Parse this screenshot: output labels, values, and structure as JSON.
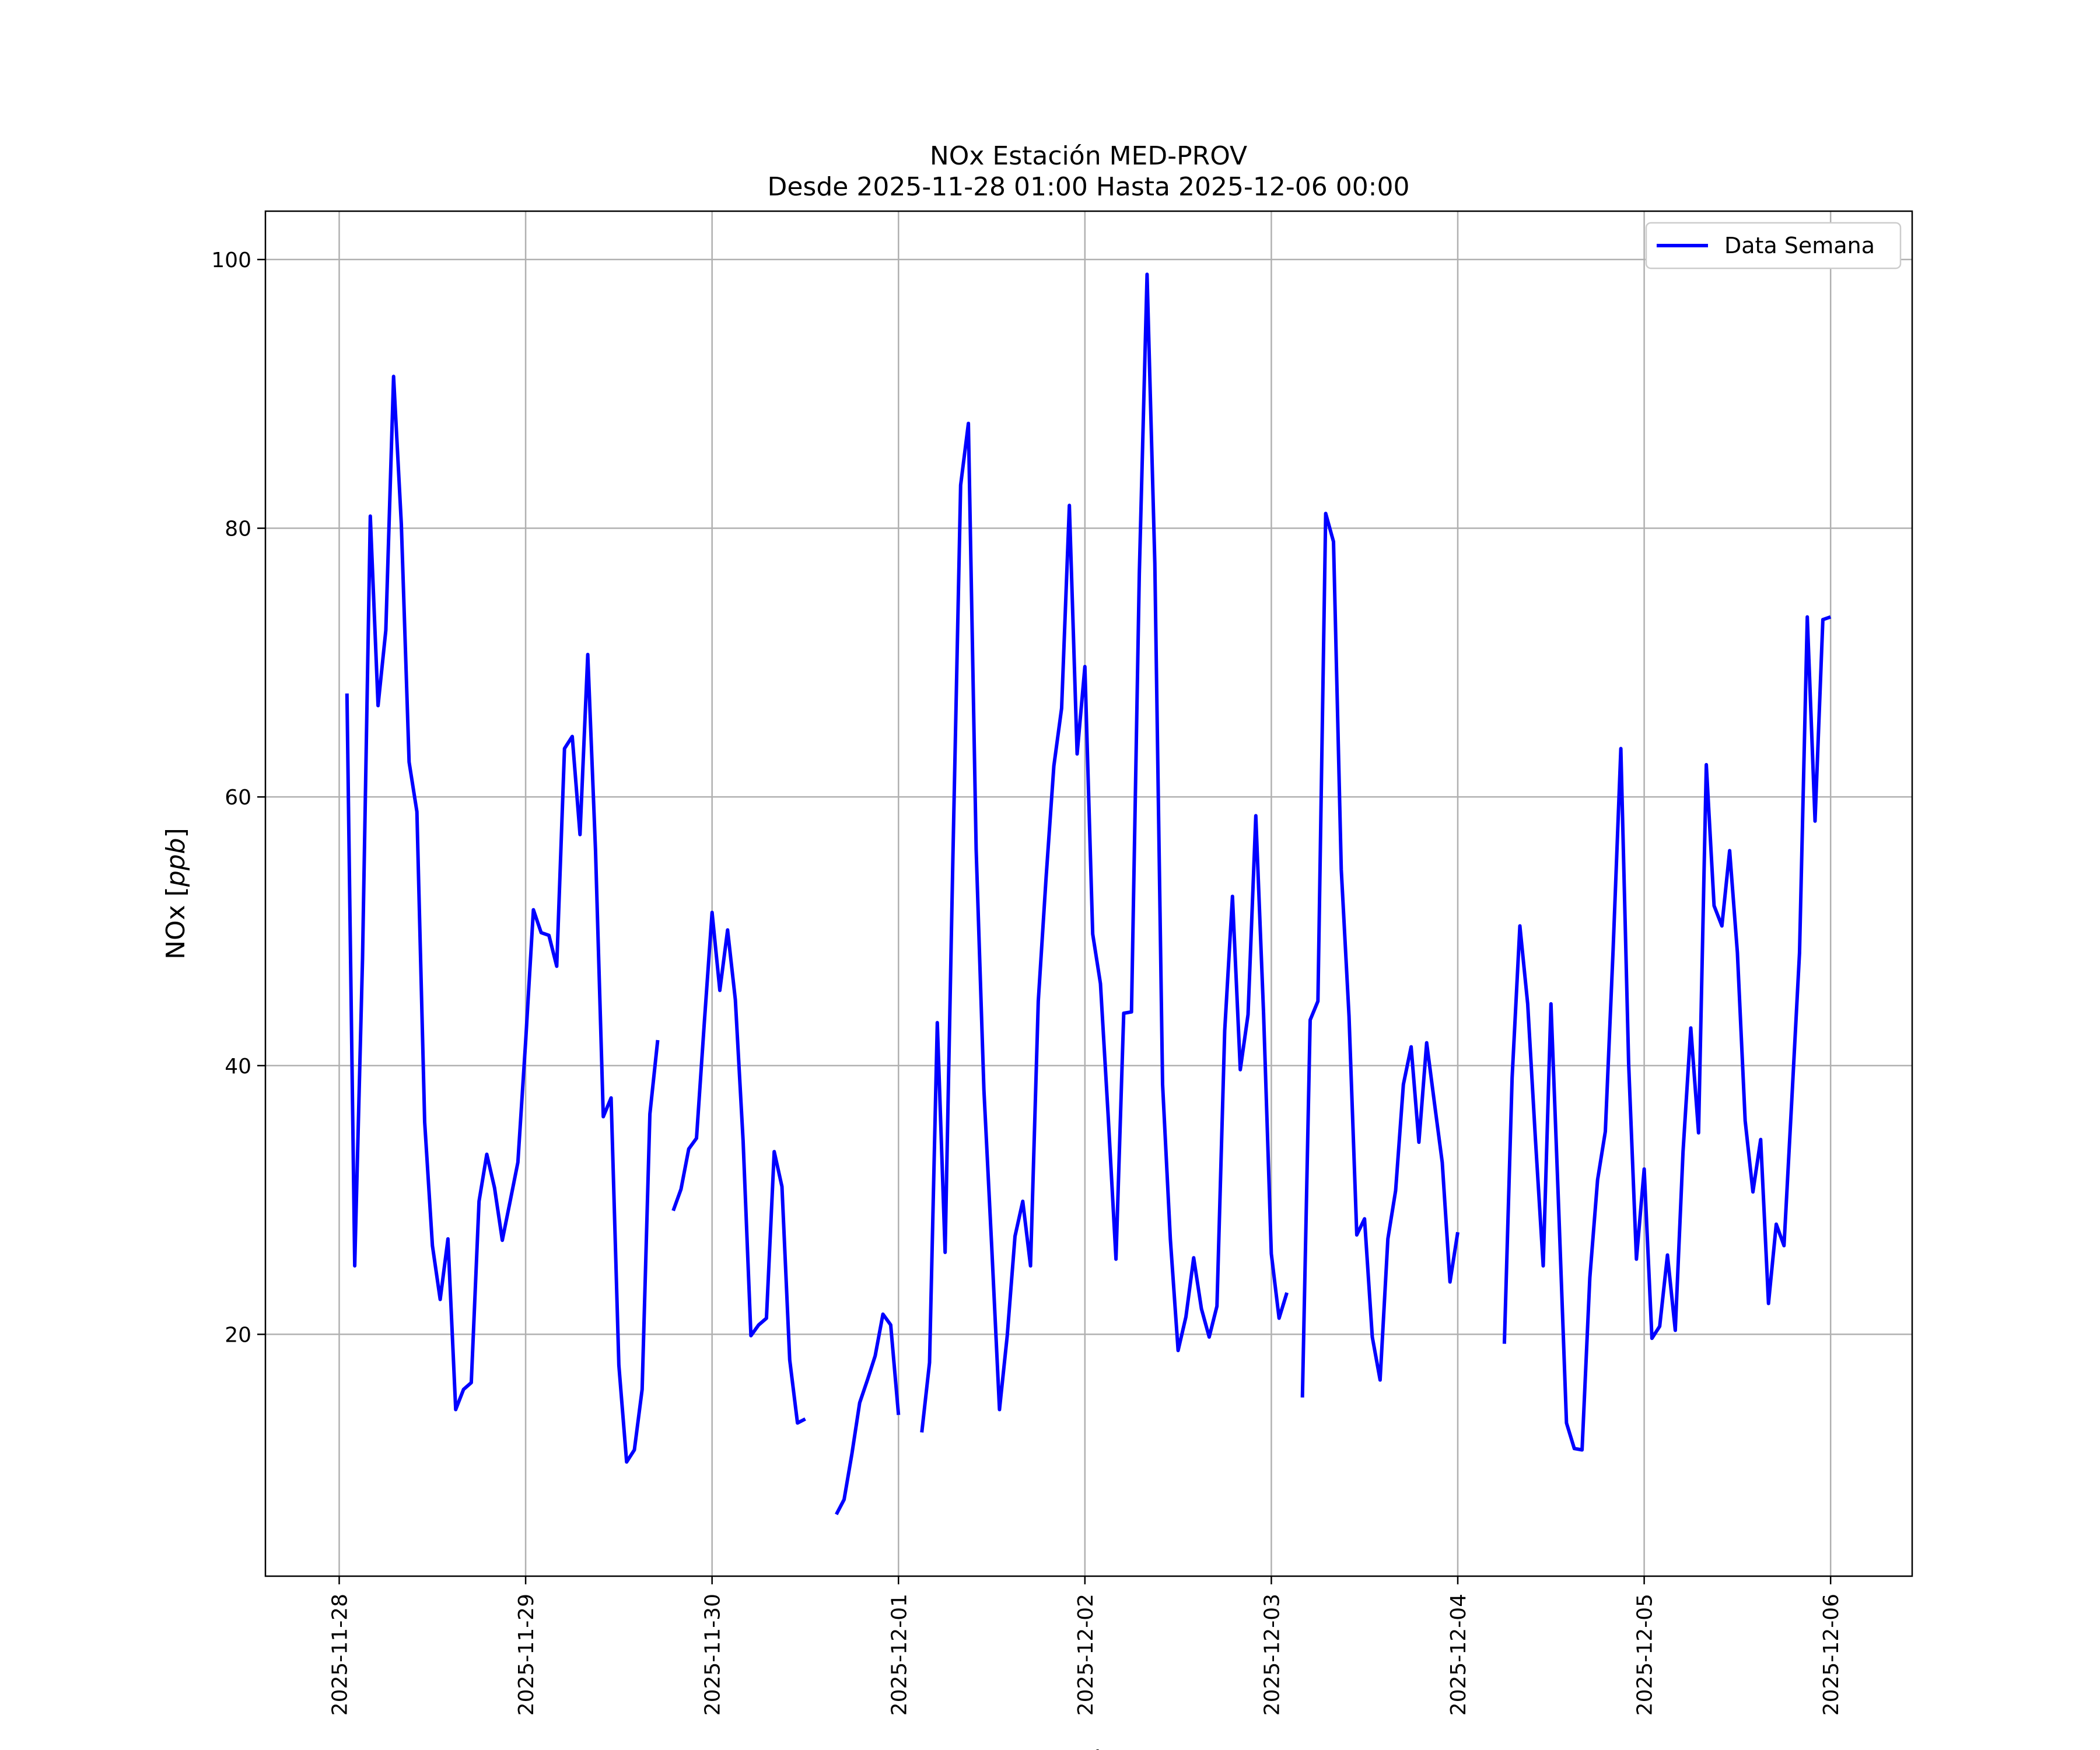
{
  "chart_data": {
    "type": "line",
    "title": "NOx Estación MED-PROV",
    "subtitle": "Desde 2025-11-28 01:00 Hasta 2025-12-06 00:00",
    "xlabel": "Fecha",
    "ylabel": "NOx [ppb]",
    "ylabel_main": "NOx [",
    "ylabel_unit": "ppb",
    "ylabel_end": "]",
    "x_ticks": [
      "2025-11-28",
      "2025-11-29",
      "2025-11-30",
      "2025-12-01",
      "2025-12-02",
      "2025-12-03",
      "2025-12-04",
      "2025-12-05",
      "2025-12-06"
    ],
    "y_ticks": [
      20,
      40,
      60,
      80,
      100
    ],
    "xlim": [
      "2025-11-27 14:30",
      "2025-12-06 10:30"
    ],
    "ylim": [
      2,
      103.6
    ],
    "grid": true,
    "legend_position": "top-right",
    "series": [
      {
        "name": "Data Semana",
        "color": "#0000ff",
        "points": [
          [
            "2025-11-28 01:00",
            67.7
          ],
          [
            "2025-11-28 02:00",
            25.1
          ],
          [
            "2025-11-28 03:00",
            48.0
          ],
          [
            "2025-11-28 04:00",
            80.9
          ],
          [
            "2025-11-28 05:00",
            66.8
          ],
          [
            "2025-11-28 06:00",
            72.4
          ],
          [
            "2025-11-28 07:00",
            91.3
          ],
          [
            "2025-11-28 08:00",
            80.3
          ],
          [
            "2025-11-28 09:00",
            62.6
          ],
          [
            "2025-11-28 10:00",
            58.9
          ],
          [
            "2025-11-28 11:00",
            35.8
          ],
          [
            "2025-11-28 12:00",
            26.6
          ],
          [
            "2025-11-28 13:00",
            22.6
          ],
          [
            "2025-11-28 14:00",
            27.1
          ],
          [
            "2025-11-28 15:00",
            14.4
          ],
          [
            "2025-11-28 16:00",
            15.9
          ],
          [
            "2025-11-28 17:00",
            16.4
          ],
          [
            "2025-11-28 18:00",
            29.9
          ],
          [
            "2025-11-28 19:00",
            33.4
          ],
          [
            "2025-11-28 20:00",
            30.9
          ],
          [
            "2025-11-28 21:00",
            27.0
          ],
          [
            "2025-11-28 22:00",
            29.9
          ],
          [
            "2025-11-28 23:00",
            32.8
          ],
          [
            "2025-11-29 00:00",
            41.8
          ],
          [
            "2025-11-29 01:00",
            51.6
          ],
          [
            "2025-11-29 02:00",
            49.9
          ],
          [
            "2025-11-29 03:00",
            49.7
          ],
          [
            "2025-11-29 04:00",
            47.4
          ],
          [
            "2025-11-29 05:00",
            63.6
          ],
          [
            "2025-11-29 06:00",
            64.5
          ],
          [
            "2025-11-29 07:00",
            57.2
          ],
          [
            "2025-11-29 08:00",
            70.6
          ],
          [
            "2025-11-29 09:00",
            56.0
          ],
          [
            "2025-11-29 10:00",
            36.2
          ],
          [
            "2025-11-29 11:00",
            37.6
          ],
          [
            "2025-11-29 12:00",
            17.7
          ],
          [
            "2025-11-29 13:00",
            10.5
          ],
          [
            "2025-11-29 14:00",
            11.4
          ],
          [
            "2025-11-29 15:00",
            15.9
          ],
          [
            "2025-11-29 16:00",
            36.4
          ],
          [
            "2025-11-29 17:00",
            41.9
          ],
          null,
          [
            "2025-11-29 19:00",
            29.2
          ],
          [
            "2025-11-29 20:00",
            30.8
          ],
          [
            "2025-11-29 21:00",
            33.8
          ],
          [
            "2025-11-29 22:00",
            34.6
          ],
          [
            "2025-11-29 23:00",
            43.2
          ],
          [
            "2025-11-30 00:00",
            51.4
          ],
          [
            "2025-11-30 01:00",
            45.6
          ],
          [
            "2025-11-30 02:00",
            50.1
          ],
          [
            "2025-11-30 03:00",
            44.9
          ],
          [
            "2025-11-30 04:00",
            34.4
          ],
          [
            "2025-11-30 05:00",
            19.9
          ],
          [
            "2025-11-30 06:00",
            20.7
          ],
          [
            "2025-11-30 07:00",
            21.2
          ],
          [
            "2025-11-30 08:00",
            33.6
          ],
          [
            "2025-11-30 09:00",
            31.0
          ],
          [
            "2025-11-30 10:00",
            18.1
          ],
          [
            "2025-11-30 11:00",
            13.4
          ],
          [
            "2025-11-30 12:00",
            13.7
          ],
          null,
          [
            "2025-11-30 16:00",
            6.6
          ],
          [
            "2025-11-30 17:00",
            7.7
          ],
          [
            "2025-11-30 18:00",
            11.1
          ],
          [
            "2025-11-30 19:00",
            14.9
          ],
          [
            "2025-11-30 20:00",
            16.6
          ],
          [
            "2025-11-30 21:00",
            18.4
          ],
          [
            "2025-11-30 22:00",
            21.5
          ],
          [
            "2025-11-30 23:00",
            20.7
          ],
          [
            "2025-12-01 00:00",
            14.0
          ],
          null,
          [
            "2025-12-01 03:00",
            12.7
          ],
          [
            "2025-12-01 04:00",
            17.9
          ],
          [
            "2025-12-01 05:00",
            43.2
          ],
          [
            "2025-12-01 06:00",
            26.1
          ],
          [
            "2025-12-01 07:00",
            55.4
          ],
          [
            "2025-12-01 08:00",
            83.2
          ],
          [
            "2025-12-01 09:00",
            87.8
          ],
          [
            "2025-12-01 10:00",
            56.1
          ],
          [
            "2025-12-01 11:00",
            38.2
          ],
          [
            "2025-12-01 12:00",
            26.6
          ],
          [
            "2025-12-01 13:00",
            14.4
          ],
          [
            "2025-12-01 14:00",
            19.9
          ],
          [
            "2025-12-01 15:00",
            27.3
          ],
          [
            "2025-12-01 16:00",
            29.9
          ],
          [
            "2025-12-01 17:00",
            25.1
          ],
          [
            "2025-12-01 18:00",
            44.8
          ],
          [
            "2025-12-01 19:00",
            54.0
          ],
          [
            "2025-12-01 20:00",
            62.3
          ],
          [
            "2025-12-01 21:00",
            66.6
          ],
          [
            "2025-12-01 22:00",
            81.7
          ],
          [
            "2025-12-01 23:00",
            63.2
          ],
          [
            "2025-12-02 00:00",
            69.7
          ],
          [
            "2025-12-02 01:00",
            49.8
          ],
          [
            "2025-12-02 02:00",
            46.1
          ],
          [
            "2025-12-02 03:00",
            36.2
          ],
          [
            "2025-12-02 04:00",
            25.6
          ],
          [
            "2025-12-02 05:00",
            43.9
          ],
          [
            "2025-12-02 06:00",
            44.0
          ],
          [
            "2025-12-02 07:00",
            76.6
          ],
          [
            "2025-12-02 08:00",
            98.9
          ],
          [
            "2025-12-02 09:00",
            77.4
          ],
          [
            "2025-12-02 10:00",
            38.6
          ],
          [
            "2025-12-02 11:00",
            27.1
          ],
          [
            "2025-12-02 12:00",
            18.8
          ],
          [
            "2025-12-02 13:00",
            21.3
          ],
          [
            "2025-12-02 14:00",
            25.7
          ],
          [
            "2025-12-02 15:00",
            21.9
          ],
          [
            "2025-12-02 16:00",
            19.8
          ],
          [
            "2025-12-02 17:00",
            22.1
          ],
          [
            "2025-12-02 18:00",
            42.6
          ],
          [
            "2025-12-02 19:00",
            52.6
          ],
          [
            "2025-12-02 20:00",
            39.7
          ],
          [
            "2025-12-02 21:00",
            43.8
          ],
          [
            "2025-12-02 22:00",
            58.6
          ],
          [
            "2025-12-02 23:00",
            43.9
          ],
          [
            "2025-12-03 00:00",
            26.0
          ],
          [
            "2025-12-03 01:00",
            21.2
          ],
          [
            "2025-12-03 02:00",
            23.1
          ],
          null,
          [
            "2025-12-03 04:00",
            15.3
          ],
          [
            "2025-12-03 05:00",
            43.4
          ],
          [
            "2025-12-03 06:00",
            44.8
          ],
          [
            "2025-12-03 07:00",
            81.1
          ],
          [
            "2025-12-03 08:00",
            79.0
          ],
          [
            "2025-12-03 09:00",
            54.6
          ],
          [
            "2025-12-03 10:00",
            43.7
          ],
          [
            "2025-12-03 11:00",
            27.4
          ],
          [
            "2025-12-03 12:00",
            28.6
          ],
          [
            "2025-12-03 13:00",
            19.8
          ],
          [
            "2025-12-03 14:00",
            16.6
          ],
          [
            "2025-12-03 15:00",
            27.1
          ],
          [
            "2025-12-03 16:00",
            30.7
          ],
          [
            "2025-12-03 17:00",
            38.6
          ],
          [
            "2025-12-03 18:00",
            41.4
          ],
          [
            "2025-12-03 19:00",
            34.3
          ],
          [
            "2025-12-03 20:00",
            41.7
          ],
          [
            "2025-12-03 21:00",
            37.2
          ],
          [
            "2025-12-03 22:00",
            32.8
          ],
          [
            "2025-12-03 23:00",
            23.9
          ],
          [
            "2025-12-04 00:00",
            27.6
          ],
          null,
          [
            "2025-12-04 06:00",
            19.3
          ],
          [
            "2025-12-04 07:00",
            39.1
          ],
          [
            "2025-12-04 08:00",
            50.4
          ],
          [
            "2025-12-04 09:00",
            44.6
          ],
          [
            "2025-12-04 10:00",
            34.5
          ],
          [
            "2025-12-04 11:00",
            25.1
          ],
          [
            "2025-12-04 12:00",
            44.6
          ],
          [
            "2025-12-04 13:00",
            29.3
          ],
          [
            "2025-12-04 14:00",
            13.4
          ],
          [
            "2025-12-04 15:00",
            11.5
          ],
          [
            "2025-12-04 16:00",
            11.4
          ],
          [
            "2025-12-04 17:00",
            24.2
          ],
          [
            "2025-12-04 18:00",
            31.5
          ],
          [
            "2025-12-04 19:00",
            35.1
          ],
          [
            "2025-12-04 20:00",
            48.6
          ],
          [
            "2025-12-04 21:00",
            63.6
          ],
          [
            "2025-12-04 22:00",
            40.1
          ],
          [
            "2025-12-04 23:00",
            25.6
          ],
          [
            "2025-12-05 00:00",
            32.3
          ],
          [
            "2025-12-05 01:00",
            19.7
          ],
          [
            "2025-12-05 02:00",
            20.6
          ],
          [
            "2025-12-05 03:00",
            25.9
          ],
          [
            "2025-12-05 04:00",
            20.3
          ],
          [
            "2025-12-05 05:00",
            33.6
          ],
          [
            "2025-12-05 06:00",
            42.8
          ],
          [
            "2025-12-05 07:00",
            35.0
          ],
          [
            "2025-12-05 08:00",
            62.4
          ],
          [
            "2025-12-05 09:00",
            51.9
          ],
          [
            "2025-12-05 10:00",
            50.4
          ],
          [
            "2025-12-05 11:00",
            56.0
          ],
          [
            "2025-12-05 12:00",
            48.4
          ],
          [
            "2025-12-05 13:00",
            35.9
          ],
          [
            "2025-12-05 14:00",
            30.6
          ],
          [
            "2025-12-05 15:00",
            34.5
          ],
          [
            "2025-12-05 16:00",
            22.3
          ],
          [
            "2025-12-05 17:00",
            28.2
          ],
          [
            "2025-12-05 18:00",
            26.6
          ],
          [
            "2025-12-05 19:00",
            37.4
          ],
          [
            "2025-12-05 20:00",
            48.4
          ],
          [
            "2025-12-05 21:00",
            73.4
          ],
          [
            "2025-12-05 22:00",
            58.2
          ],
          [
            "2025-12-05 23:00",
            73.2
          ],
          [
            "2025-12-06 00:00",
            73.4
          ]
        ]
      }
    ]
  }
}
